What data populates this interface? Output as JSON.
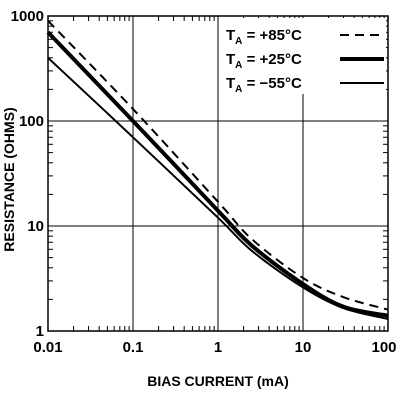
{
  "chart_data": {
    "type": "line",
    "title": "",
    "xlabel": "BIAS CURRENT  (mA)",
    "ylabel": "RESISTANCE (OHMS)",
    "x_scale": "log",
    "y_scale": "log",
    "xlim": [
      0.01,
      100
    ],
    "ylim": [
      1,
      1000
    ],
    "x_ticks": [
      {
        "value": 0.01,
        "label": "0.01"
      },
      {
        "value": 0.1,
        "label": "0.1"
      },
      {
        "value": 1,
        "label": "1"
      },
      {
        "value": 10,
        "label": "10"
      },
      {
        "value": 100,
        "label": "100"
      }
    ],
    "y_ticks": [
      {
        "value": 1,
        "label": "1"
      },
      {
        "value": 10,
        "label": "10"
      },
      {
        "value": 100,
        "label": "100"
      },
      {
        "value": 1000,
        "label": "1000"
      }
    ],
    "grid": true,
    "legend_position": "top-right",
    "series": [
      {
        "name": "T_A = +85°C",
        "legend_prefix": "T",
        "legend_sub": "A",
        "legend_suffix": " = +85°C",
        "style": "dashed",
        "x": [
          0.01,
          0.1,
          1,
          2.5,
          10,
          30,
          100
        ],
        "y": [
          900,
          130,
          17,
          7.5,
          3.2,
          2.1,
          1.6
        ]
      },
      {
        "name": "T_A = +25°C",
        "legend_prefix": "T",
        "legend_sub": "A",
        "legend_suffix": " = +25°C",
        "style": "thick",
        "x": [
          0.01,
          0.1,
          1,
          2.5,
          10,
          30,
          100
        ],
        "y": [
          700,
          100,
          14,
          6.5,
          2.8,
          1.7,
          1.4
        ]
      },
      {
        "name": "T_A = −55°C",
        "legend_prefix": "T",
        "legend_sub": "A",
        "legend_suffix": " = −55°C",
        "style": "solid",
        "x": [
          0.01,
          0.1,
          1,
          2.5,
          10,
          30,
          100
        ],
        "y": [
          400,
          70,
          12,
          5.8,
          2.6,
          1.65,
          1.3
        ]
      }
    ]
  }
}
